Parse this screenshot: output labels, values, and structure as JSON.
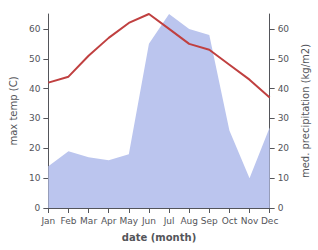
{
  "chart_data": {
    "type": "line",
    "xlabel": "date (month)",
    "ylabel": "max temp (C)",
    "y2label": "med. precipitation (kg/m2)",
    "categories": [
      "Jan",
      "Feb",
      "Mar",
      "Apr",
      "May",
      "Jun",
      "Jul",
      "Aug",
      "Sep",
      "Oct",
      "Nov",
      "Dec"
    ],
    "series": [
      {
        "type": "area",
        "axis": "y2",
        "color": "#bbc5ee",
        "values": [
          14,
          19,
          17,
          16,
          18,
          55,
          65,
          60,
          58,
          26,
          10,
          27
        ]
      },
      {
        "type": "line",
        "color": "#c04040",
        "values": [
          42,
          44,
          51,
          57,
          62,
          65,
          60,
          55,
          53,
          48,
          43,
          37
        ]
      }
    ],
    "ylim": [
      0,
      65
    ],
    "yticks": [
      0,
      10,
      20,
      30,
      40,
      50,
      60
    ],
    "y2lim": [
      0,
      65
    ],
    "y2ticks": [
      0,
      10,
      20,
      30,
      40,
      50,
      60
    ],
    "grid": false
  }
}
